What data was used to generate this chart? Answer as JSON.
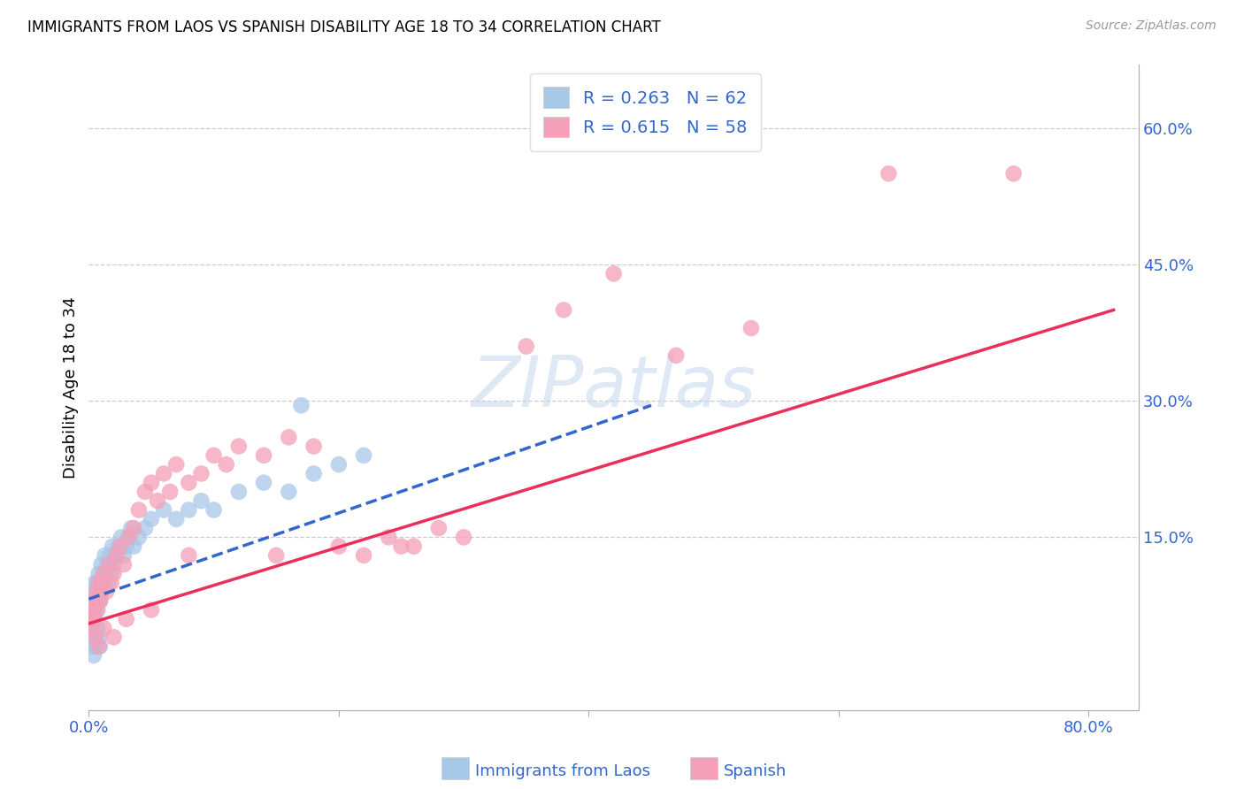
{
  "title": "IMMIGRANTS FROM LAOS VS SPANISH DISABILITY AGE 18 TO 34 CORRELATION CHART",
  "source": "Source: ZipAtlas.com",
  "ylabel": "Disability Age 18 to 34",
  "xlim": [
    0.0,
    0.84
  ],
  "ylim": [
    -0.04,
    0.67
  ],
  "x_ticks": [
    0.0,
    0.2,
    0.4,
    0.6,
    0.8
  ],
  "x_tick_labels": [
    "0.0%",
    "",
    "",
    "",
    "80.0%"
  ],
  "y_ticks_right": [
    0.15,
    0.3,
    0.45,
    0.6
  ],
  "y_tick_labels_right": [
    "15.0%",
    "30.0%",
    "45.0%",
    "60.0%"
  ],
  "blue_color": "#a8c8e8",
  "pink_color": "#f4a0b8",
  "blue_line_color": "#3366cc",
  "pink_line_color": "#e8305a",
  "blue_label": "R = 0.263   N = 62",
  "pink_label": "R = 0.615   N = 58",
  "bottom_blue_label": "Immigrants from Laos",
  "bottom_pink_label": "Spanish",
  "watermark": "ZIPatlas",
  "blue_x": [
    0.001,
    0.002,
    0.002,
    0.003,
    0.003,
    0.004,
    0.004,
    0.005,
    0.005,
    0.005,
    0.006,
    0.006,
    0.007,
    0.007,
    0.008,
    0.008,
    0.009,
    0.009,
    0.01,
    0.01,
    0.011,
    0.012,
    0.013,
    0.014,
    0.015,
    0.016,
    0.017,
    0.018,
    0.019,
    0.02,
    0.022,
    0.024,
    0.026,
    0.028,
    0.03,
    0.032,
    0.034,
    0.036,
    0.04,
    0.045,
    0.05,
    0.06,
    0.07,
    0.08,
    0.09,
    0.1,
    0.12,
    0.14,
    0.16,
    0.18,
    0.2,
    0.22,
    0.002,
    0.003,
    0.004,
    0.005,
    0.006,
    0.007,
    0.008,
    0.009,
    0.17,
    0.003
  ],
  "blue_y": [
    0.06,
    0.07,
    0.04,
    0.08,
    0.06,
    0.09,
    0.07,
    0.1,
    0.08,
    0.06,
    0.09,
    0.07,
    0.1,
    0.08,
    0.11,
    0.09,
    0.1,
    0.08,
    0.12,
    0.09,
    0.11,
    0.1,
    0.13,
    0.11,
    0.12,
    0.1,
    0.13,
    0.11,
    0.14,
    0.12,
    0.13,
    0.14,
    0.15,
    0.13,
    0.14,
    0.15,
    0.16,
    0.14,
    0.15,
    0.16,
    0.17,
    0.18,
    0.17,
    0.18,
    0.19,
    0.18,
    0.2,
    0.21,
    0.2,
    0.22,
    0.23,
    0.24,
    0.05,
    0.03,
    0.02,
    0.04,
    0.03,
    0.05,
    0.04,
    0.03,
    0.295,
    0.065
  ],
  "pink_x": [
    0.001,
    0.002,
    0.003,
    0.004,
    0.005,
    0.006,
    0.007,
    0.008,
    0.009,
    0.01,
    0.011,
    0.012,
    0.014,
    0.016,
    0.018,
    0.02,
    0.022,
    0.025,
    0.028,
    0.032,
    0.036,
    0.04,
    0.045,
    0.05,
    0.055,
    0.06,
    0.065,
    0.07,
    0.08,
    0.09,
    0.1,
    0.11,
    0.12,
    0.14,
    0.16,
    0.18,
    0.2,
    0.22,
    0.24,
    0.26,
    0.28,
    0.3,
    0.005,
    0.008,
    0.012,
    0.02,
    0.03,
    0.05,
    0.08,
    0.15,
    0.25,
    0.35,
    0.38,
    0.42,
    0.47,
    0.53,
    0.64,
    0.74
  ],
  "pink_y": [
    0.05,
    0.06,
    0.07,
    0.06,
    0.08,
    0.09,
    0.07,
    0.1,
    0.08,
    0.09,
    0.1,
    0.11,
    0.09,
    0.12,
    0.1,
    0.11,
    0.13,
    0.14,
    0.12,
    0.15,
    0.16,
    0.18,
    0.2,
    0.21,
    0.19,
    0.22,
    0.2,
    0.23,
    0.21,
    0.22,
    0.24,
    0.23,
    0.25,
    0.24,
    0.26,
    0.25,
    0.14,
    0.13,
    0.15,
    0.14,
    0.16,
    0.15,
    0.04,
    0.03,
    0.05,
    0.04,
    0.06,
    0.07,
    0.13,
    0.13,
    0.14,
    0.36,
    0.4,
    0.44,
    0.35,
    0.38,
    0.55,
    0.55
  ],
  "blue_line_x": [
    0.0,
    0.45
  ],
  "blue_line_y": [
    0.082,
    0.295
  ],
  "pink_line_x": [
    0.0,
    0.82
  ],
  "pink_line_y": [
    0.055,
    0.4
  ]
}
